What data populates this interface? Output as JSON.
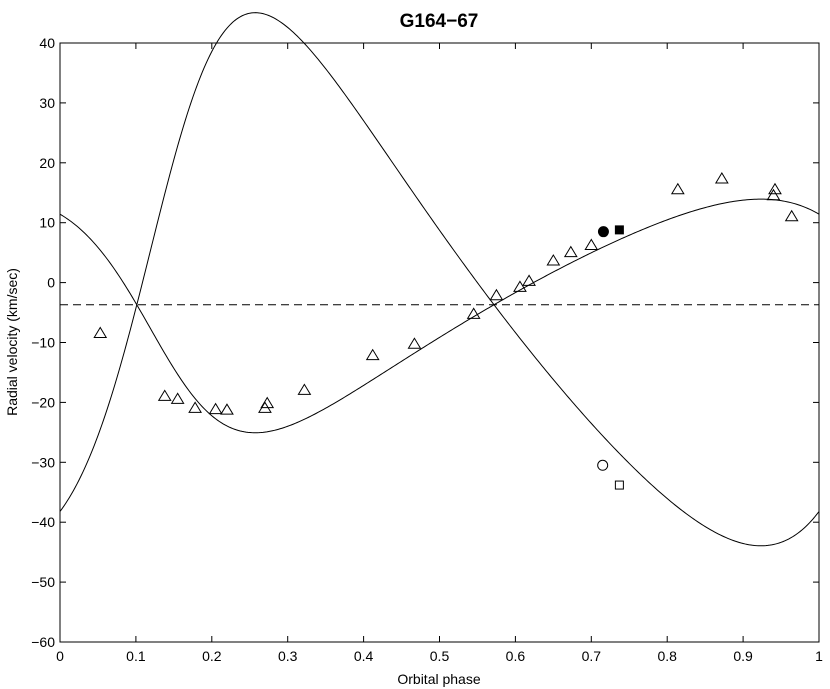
{
  "chart_data": {
    "type": "scatter",
    "title": "G164−67",
    "xlabel": "Orbital phase",
    "ylabel": "Radial velocity (km/sec)",
    "xlim": [
      0,
      1
    ],
    "ylim": [
      -60,
      40
    ],
    "x_ticks": [
      "0",
      "0.1",
      "0.2",
      "0.3",
      "0.4",
      "0.5",
      "0.6",
      "0.7",
      "0.8",
      "0.9",
      "1"
    ],
    "y_ticks": [
      "40",
      "30",
      "20",
      "10",
      "0",
      "−10",
      "−20",
      "−30",
      "−40",
      "−50",
      "−60"
    ],
    "grid": false,
    "legend": "none",
    "systemic_velocity": -3.7,
    "orbit_model": {
      "primary": {
        "K": 19.5,
        "e": 0.28,
        "omega_deg": 110,
        "phase_periastron": 0.14
      },
      "secondary": {
        "K": 44.5
      }
    },
    "series": [
      {
        "marker": "triangle-open",
        "x": [
          0.053,
          0.138,
          0.155,
          0.178,
          0.205,
          0.22,
          0.27,
          0.273,
          0.322,
          0.412,
          0.467,
          0.545,
          0.575,
          0.606,
          0.618,
          0.65,
          0.673,
          0.7,
          0.814,
          0.872,
          0.94,
          0.942,
          0.964
        ],
        "y": [
          -8.5,
          -19.0,
          -19.5,
          -21.0,
          -21.2,
          -21.3,
          -21.0,
          -20.2,
          -18.0,
          -12.2,
          -10.3,
          -5.3,
          -2.2,
          -0.8,
          0.2,
          3.6,
          5.0,
          6.2,
          15.5,
          17.3,
          14.5,
          15.5,
          11.0
        ]
      },
      {
        "marker": "circle-filled",
        "x": [
          0.716
        ],
        "y": [
          8.5
        ]
      },
      {
        "marker": "square-filled",
        "x": [
          0.737
        ],
        "y": [
          8.8
        ]
      },
      {
        "marker": "circle-open",
        "x": [
          0.715
        ],
        "y": [
          -30.5
        ]
      },
      {
        "marker": "square-open",
        "x": [
          0.737
        ],
        "y": [
          -33.8
        ]
      }
    ]
  }
}
